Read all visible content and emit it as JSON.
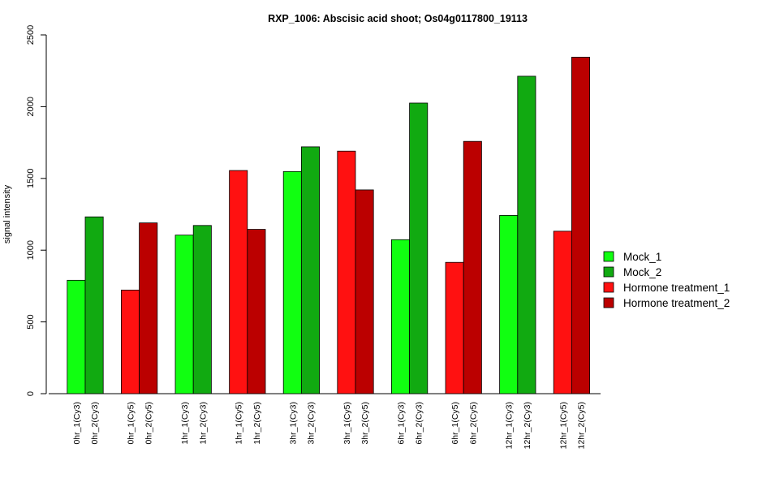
{
  "chart_data": {
    "type": "bar",
    "title": "RXP_1006: Abscisic acid shoot; Os04g0117800_19113",
    "xlabel": "",
    "ylabel": "signal intensity",
    "ylim": [
      0,
      2500
    ],
    "yticks": [
      0,
      500,
      1000,
      1500,
      2000,
      2500
    ],
    "grid": false,
    "legend_position": "right",
    "legend": [
      {
        "name": "Mock_1",
        "color": "#11FF11"
      },
      {
        "name": "Mock_2",
        "color": "#11AA11"
      },
      {
        "name": "Hormone treatment_1",
        "color": "#FF1111"
      },
      {
        "name": "Hormone treatment_2",
        "color": "#BB0000"
      }
    ],
    "groups": [
      {
        "bars": [
          {
            "label": "0hr_1(Cy3)",
            "value": 790,
            "series": 0
          },
          {
            "label": "0hr_2(Cy3)",
            "value": 1232,
            "series": 1
          }
        ]
      },
      {
        "bars": [
          {
            "label": "0hr_1(Cy5)",
            "value": 722,
            "series": 2
          },
          {
            "label": "0hr_2(Cy5)",
            "value": 1190,
            "series": 3
          }
        ]
      },
      {
        "bars": [
          {
            "label": "1hr_1(Cy3)",
            "value": 1105,
            "series": 0
          },
          {
            "label": "1hr_2(Cy3)",
            "value": 1172,
            "series": 1
          }
        ]
      },
      {
        "bars": [
          {
            "label": "1hr_1(Cy5)",
            "value": 1555,
            "series": 2
          },
          {
            "label": "1hr_2(Cy5)",
            "value": 1145,
            "series": 3
          }
        ]
      },
      {
        "bars": [
          {
            "label": "3hr_1(Cy3)",
            "value": 1548,
            "series": 0
          },
          {
            "label": "3hr_2(Cy3)",
            "value": 1720,
            "series": 1
          }
        ]
      },
      {
        "bars": [
          {
            "label": "3hr_1(Cy5)",
            "value": 1690,
            "series": 2
          },
          {
            "label": "3hr_2(Cy5)",
            "value": 1420,
            "series": 3
          }
        ]
      },
      {
        "bars": [
          {
            "label": "6hr_1(Cy3)",
            "value": 1073,
            "series": 0
          },
          {
            "label": "6hr_2(Cy3)",
            "value": 2025,
            "series": 1
          }
        ]
      },
      {
        "bars": [
          {
            "label": "6hr_1(Cy5)",
            "value": 915,
            "series": 2
          },
          {
            "label": "6hr_2(Cy5)",
            "value": 1758,
            "series": 3
          }
        ]
      },
      {
        "bars": [
          {
            "label": "12hr_1(Cy3)",
            "value": 1242,
            "series": 0
          },
          {
            "label": "12hr_2(Cy3)",
            "value": 2212,
            "series": 1
          }
        ]
      },
      {
        "bars": [
          {
            "label": "12hr_1(Cy5)",
            "value": 1132,
            "series": 2
          },
          {
            "label": "12hr_2(Cy5)",
            "value": 2345,
            "series": 3
          }
        ]
      }
    ]
  }
}
